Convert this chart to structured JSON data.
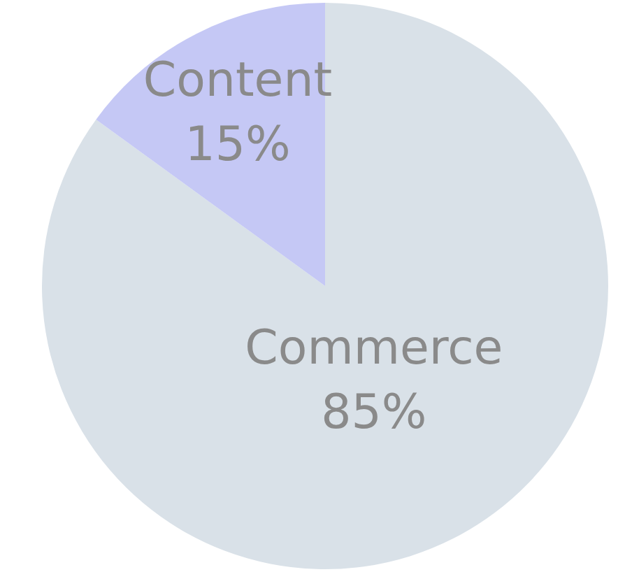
{
  "chart_data": {
    "type": "pie",
    "categories": [
      "Commerce",
      "Content"
    ],
    "values": [
      85,
      15
    ],
    "colors": [
      "#d9e1e8",
      "#c5c8f5"
    ],
    "value_labels": [
      "85%",
      "15%"
    ],
    "legend": false
  }
}
